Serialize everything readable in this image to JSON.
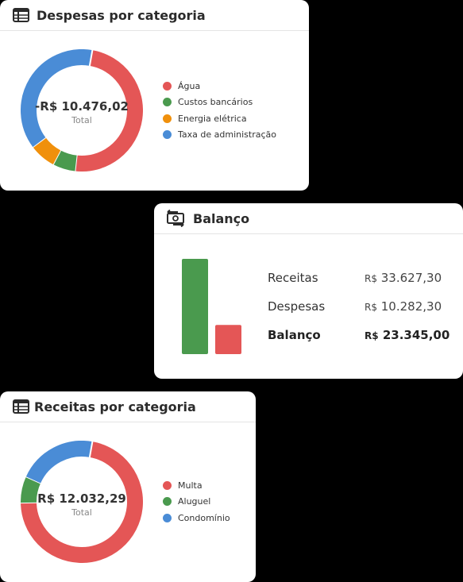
{
  "colors": {
    "red": "#e45656",
    "green": "#4a9a4e",
    "orange": "#f0900c",
    "blue": "#4a8cd6"
  },
  "despesas": {
    "title": "Despesas por categoria",
    "icon": "table-icon",
    "total_value": "-R$ 10.476,02",
    "total_label": "Total",
    "legend": [
      {
        "label": "Água",
        "color": "#e45656"
      },
      {
        "label": "Custos bancários",
        "color": "#4a9a4e"
      },
      {
        "label": "Energia elétrica",
        "color": "#f0900c"
      },
      {
        "label": "Taxa de administração",
        "color": "#4a8cd6"
      }
    ],
    "chart_data": {
      "type": "pie",
      "categories": [
        "Água",
        "Custos bancários",
        "Energia elétrica",
        "Taxa de administração"
      ],
      "values": [
        49,
        6,
        7,
        38
      ],
      "unit": "%"
    }
  },
  "balanco": {
    "title": "Balanço",
    "icon": "money-exchange-icon",
    "rows": [
      {
        "label": "Receitas",
        "currency": "R$",
        "amount": "33.627,30"
      },
      {
        "label": "Despesas",
        "currency": "R$",
        "amount": "10.282,30"
      },
      {
        "label": "Balanço",
        "currency": "R$",
        "amount": "23.345,00"
      }
    ],
    "chart_data": {
      "type": "bar",
      "categories": [
        "Receitas",
        "Despesas"
      ],
      "values": [
        33627.3,
        10282.3
      ],
      "colors": [
        "#4a9a4e",
        "#e45656"
      ]
    }
  },
  "receitas": {
    "title": "Receitas por categoria",
    "icon": "table-icon",
    "total_value": "R$ 12.032,29",
    "total_label": "Total",
    "legend": [
      {
        "label": "Multa",
        "color": "#e45656"
      },
      {
        "label": "Aluguel",
        "color": "#4a9a4e"
      },
      {
        "label": "Condomínio",
        "color": "#4a8cd6"
      }
    ],
    "chart_data": {
      "type": "pie",
      "categories": [
        "Multa",
        "Aluguel",
        "Condomínio"
      ],
      "values": [
        72,
        7,
        21
      ],
      "unit": "%"
    }
  }
}
